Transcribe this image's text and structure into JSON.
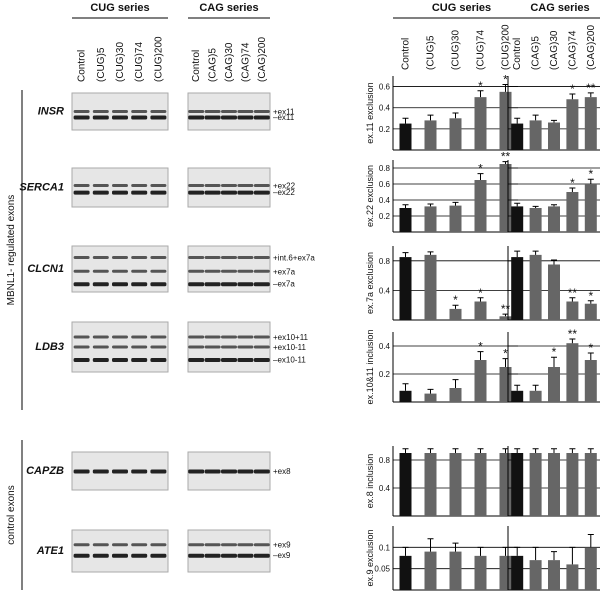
{
  "figure": {
    "column_titles": [
      "CUG series",
      "CAG series"
    ],
    "lanes": [
      [
        "Control",
        "(CUG)5",
        "(CUG)30",
        "(CUG)74",
        "(CUG)200"
      ],
      [
        "Control",
        "(CAG)5",
        "(CAG)30",
        "(CAG)74",
        "(CAG)200"
      ]
    ],
    "group_labels": [
      "MBNL1- regulated exons",
      "control exons"
    ],
    "genes": [
      {
        "name": "INSR",
        "bands": [
          "+ex11",
          "–ex11"
        ]
      },
      {
        "name": "SERCA1",
        "bands": [
          "+ex22",
          "–ex22"
        ]
      },
      {
        "name": "CLCN1",
        "bands": [
          "+int.6+ex7a",
          "+ex7a",
          "–ex7a"
        ]
      },
      {
        "name": "LDB3",
        "bands": [
          "+ex10+11",
          "+ex10-11",
          "–ex10-11"
        ]
      },
      {
        "name": "CAPZB",
        "bands": [
          "+ex8"
        ]
      },
      {
        "name": "ATE1",
        "bands": [
          "+ex9",
          "–ex9"
        ]
      }
    ]
  },
  "chart_data": [
    {
      "type": "bar",
      "title": "CUG series",
      "tick_labels": true,
      "categories": [
        "Control",
        "(CUG)5",
        "(CUG)30",
        "(CUG)74",
        "(CUG)200"
      ],
      "colors": [
        "#111111",
        "#666666",
        "#666666",
        "#666666",
        "#666666"
      ],
      "panels": [
        {
          "ylabel": "ex.11 exclusion",
          "ylim": [
            0,
            0.7
          ],
          "yticks": [
            0.2,
            0.4,
            0.6
          ],
          "values": [
            0.25,
            0.28,
            0.3,
            0.5,
            0.55
          ],
          "errors": [
            0.05,
            0.05,
            0.05,
            0.06,
            0.07
          ],
          "annotations": [
            null,
            null,
            null,
            "*",
            "*"
          ]
        },
        {
          "ylabel": "ex.22 exclusion",
          "ylim": [
            0,
            0.9
          ],
          "yticks": [
            0.2,
            0.4,
            0.6,
            0.8
          ],
          "values": [
            0.3,
            0.32,
            0.33,
            0.65,
            0.85
          ],
          "errors": [
            0.04,
            0.03,
            0.04,
            0.08,
            0.03
          ],
          "annotations": [
            null,
            null,
            null,
            "*",
            "**"
          ]
        },
        {
          "ylabel": "ex.7a exclusion",
          "ylim": [
            0,
            1
          ],
          "yticks": [
            0.4,
            0.8
          ],
          "values": [
            0.85,
            0.88,
            0.15,
            0.25,
            0.05
          ],
          "errors": [
            0.06,
            0.04,
            0.05,
            0.05,
            0.03
          ],
          "annotations": [
            null,
            null,
            "*",
            "*",
            "**"
          ]
        },
        {
          "ylabel": "ex.10&11 inclusion",
          "ylim": [
            0,
            0.5
          ],
          "yticks": [
            0.2,
            0.4
          ],
          "values": [
            0.08,
            0.06,
            0.1,
            0.3,
            0.25
          ],
          "errors": [
            0.05,
            0.03,
            0.06,
            0.06,
            0.06
          ],
          "annotations": [
            null,
            null,
            null,
            "*",
            "*"
          ]
        },
        {
          "ylabel": "ex.8 inclusion",
          "ylim": [
            0,
            1
          ],
          "yticks": [
            0.4,
            0.8
          ],
          "values": [
            0.9,
            0.9,
            0.9,
            0.9,
            0.9
          ],
          "errors": [
            0.06,
            0.06,
            0.06,
            0.06,
            0.06
          ],
          "annotations": [
            null,
            null,
            null,
            null,
            null
          ]
        },
        {
          "ylabel": "ex.9 exclusion",
          "ylim": [
            0,
            0.15
          ],
          "yticks": [
            0.05,
            0.1
          ],
          "values": [
            0.08,
            0.09,
            0.09,
            0.08,
            0.08
          ],
          "errors": [
            0.02,
            0.03,
            0.02,
            0.02,
            0.02
          ],
          "annotations": [
            null,
            null,
            null,
            null,
            null
          ]
        }
      ]
    },
    {
      "type": "bar",
      "title": "CAG series",
      "tick_labels": false,
      "categories": [
        "Control",
        "(CAG)5",
        "(CAG)30",
        "(CAG)74",
        "(CAG)200"
      ],
      "colors": [
        "#111111",
        "#666666",
        "#666666",
        "#666666",
        "#666666"
      ],
      "panels": [
        {
          "ylabel": "ex.11 exclusion",
          "ylim": [
            0,
            0.7
          ],
          "yticks": [
            0.2,
            0.4,
            0.6
          ],
          "values": [
            0.25,
            0.28,
            0.26,
            0.48,
            0.5
          ],
          "errors": [
            0.05,
            0.05,
            0.02,
            0.05,
            0.04
          ],
          "annotations": [
            null,
            null,
            null,
            "*",
            "**"
          ]
        },
        {
          "ylabel": "ex.22 exclusion",
          "ylim": [
            0,
            0.9
          ],
          "yticks": [
            0.2,
            0.4,
            0.6,
            0.8
          ],
          "values": [
            0.32,
            0.3,
            0.32,
            0.5,
            0.6
          ],
          "errors": [
            0.04,
            0.02,
            0.02,
            0.05,
            0.06
          ],
          "annotations": [
            null,
            null,
            null,
            "*",
            "*"
          ]
        },
        {
          "ylabel": "ex.7a exclusion",
          "ylim": [
            0,
            1
          ],
          "yticks": [
            0.4,
            0.8
          ],
          "values": [
            0.85,
            0.88,
            0.75,
            0.25,
            0.22
          ],
          "errors": [
            0.08,
            0.05,
            0.06,
            0.05,
            0.04
          ],
          "annotations": [
            null,
            null,
            null,
            "**",
            "*"
          ]
        },
        {
          "ylabel": "ex.10&11 inclusion",
          "ylim": [
            0,
            0.5
          ],
          "yticks": [
            0.2,
            0.4
          ],
          "values": [
            0.08,
            0.08,
            0.25,
            0.42,
            0.3
          ],
          "errors": [
            0.04,
            0.04,
            0.07,
            0.03,
            0.05
          ],
          "annotations": [
            null,
            null,
            "*",
            "**",
            "*"
          ]
        },
        {
          "ylabel": "ex.8 inclusion",
          "ylim": [
            0,
            1
          ],
          "yticks": [
            0.4,
            0.8
          ],
          "values": [
            0.9,
            0.9,
            0.9,
            0.9,
            0.9
          ],
          "errors": [
            0.06,
            0.06,
            0.06,
            0.06,
            0.06
          ],
          "annotations": [
            null,
            null,
            null,
            null,
            null
          ]
        },
        {
          "ylabel": "ex.9 exclusion",
          "ylim": [
            0,
            0.15
          ],
          "yticks": [
            0.05,
            0.1
          ],
          "values": [
            0.08,
            0.07,
            0.07,
            0.06,
            0.1
          ],
          "errors": [
            0.02,
            0.03,
            0.02,
            0.04,
            0.03
          ],
          "annotations": [
            null,
            null,
            null,
            null,
            null
          ]
        }
      ]
    }
  ]
}
